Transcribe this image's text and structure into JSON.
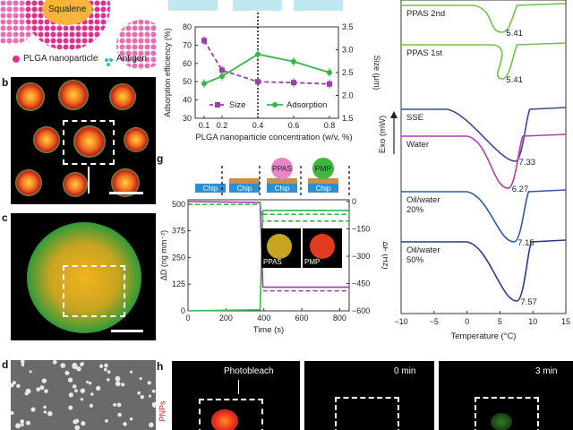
{
  "panel_labels": {
    "b": "b",
    "c": "c",
    "d": "d",
    "g": "g",
    "h": "h"
  },
  "top_left": {
    "particle_label": "Squalene",
    "legend_plga": "PLGA nanoparticle",
    "legend_antigen": "Antigen"
  },
  "chart_adsorption": {
    "type": "line",
    "xlabel": "PLGA nanoparticle concentration (w/v, %)",
    "ylabel_left": "Adsorption efficiency (%)",
    "ylabel_right": "Size (μm)",
    "x": [
      0.1,
      0.2,
      0.4,
      0.6,
      0.8
    ],
    "xticks": [
      "0.1",
      "0.2",
      "0.4",
      "0.6",
      "0.8"
    ],
    "ylim_left": [
      30,
      80
    ],
    "yticks_left": [
      "30",
      "40",
      "50",
      "60",
      "70",
      "80"
    ],
    "ylim_right": [
      1.5,
      3.5
    ],
    "yticks_right": [
      "1.5",
      "2.0",
      "2.5",
      "3.0",
      "3.5"
    ],
    "series": [
      {
        "name": "Size",
        "axis": "right",
        "color": "#9b3fa8",
        "style": "dashed",
        "values": [
          3.2,
          2.55,
          2.3,
          2.28,
          2.25
        ]
      },
      {
        "name": "Adsorption",
        "axis": "left",
        "color": "#39b54a",
        "style": "solid",
        "values": [
          49,
          53,
          65,
          61,
          55
        ]
      }
    ]
  },
  "chart_qcm": {
    "type": "line",
    "xlabel": "Time (s)",
    "ylabel_left": "ΔD (ng mm⁻²)",
    "ylabel_right": "ΔF (Hz)",
    "xticks": [
      "0",
      "200",
      "400",
      "600",
      "800"
    ],
    "yticks_left": [
      "0",
      "125",
      "250",
      "375",
      "500"
    ],
    "yticks_right": [
      "0",
      "−150",
      "−300",
      "−450",
      "−600"
    ],
    "chip_label": "Chip",
    "bubble_ppas": "PPAS",
    "bubble_pmp": "PMP",
    "inset_ppas": "PPAS",
    "inset_pmp": "PMP"
  },
  "chart_dsc": {
    "type": "line",
    "xlabel": "Temperature (°C)",
    "ylabel": "Exo (mW)",
    "xticks": [
      "−10",
      "−5",
      "0",
      "5",
      "10",
      "15"
    ],
    "curves": [
      {
        "name": "PPAS  2nd",
        "peak": "5.41",
        "color": "#6fc24a"
      },
      {
        "name": "PPAS  1st",
        "peak": "5.41",
        "color": "#6fc24a"
      },
      {
        "name": "SSE",
        "peak": "7.33",
        "color": "#3d4a9a"
      },
      {
        "name": "Water",
        "peak": "6.27",
        "color": "#b43cb4"
      },
      {
        "name": "Oil/water\n20%",
        "peak": "7.15",
        "color": "#2e5aa8"
      },
      {
        "name": "Oil/water\n50%",
        "peak": "7.57",
        "color": "#2a3a86"
      }
    ]
  },
  "panel_h": {
    "photobleach": "Photobleach",
    "t0": "0 min",
    "t3": "3 min",
    "side_label": "PNPs"
  }
}
